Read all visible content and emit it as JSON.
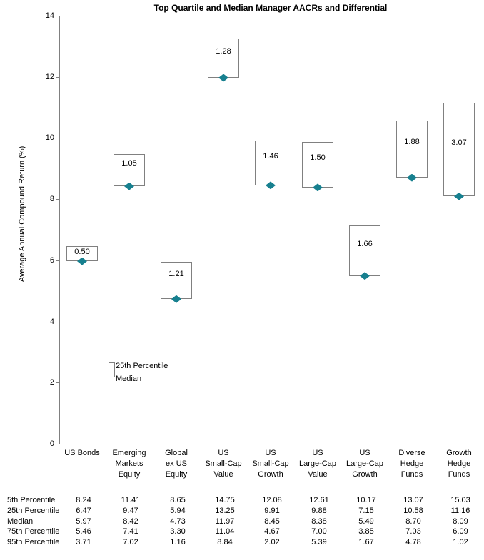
{
  "chart_data": {
    "type": "bar",
    "subtype": "floating_range_bars_with_median_marker",
    "title": "Top Quartile and Median Manager AACRs and Differential",
    "ylabel": "Average Annual Compound Return (%)",
    "xlabel": "",
    "ylim": [
      0,
      14
    ],
    "yticks": [
      0,
      2,
      4,
      6,
      8,
      10,
      12,
      14
    ],
    "grid": false,
    "legend_position": "inside-plot-left",
    "legend": {
      "bar_label": "25th Percentile",
      "marker_label": "Median"
    },
    "categories": [
      [
        "US Bonds"
      ],
      [
        "Emerging",
        "Markets",
        "Equity"
      ],
      [
        "Global",
        "ex US",
        "Equity"
      ],
      [
        "US",
        "Small-Cap",
        "Value"
      ],
      [
        "US",
        "Small-Cap",
        "Growth"
      ],
      [
        "US",
        "Large-Cap",
        "Value"
      ],
      [
        "US",
        "Large-Cap",
        "Growth"
      ],
      [
        "Diverse",
        "Hedge",
        "Funds"
      ],
      [
        "Growth",
        "Hedge",
        "Funds"
      ]
    ],
    "bar_top_series": "25th Percentile",
    "bar_bottom_series": "Median",
    "differential_labels": [
      "0.50",
      "1.05",
      "1.21",
      "1.28",
      "1.46",
      "1.50",
      "1.66",
      "1.88",
      "3.07"
    ],
    "series": [
      {
        "name": "5th Percentile",
        "values": [
          8.24,
          11.41,
          8.65,
          14.75,
          12.08,
          12.61,
          10.17,
          13.07,
          15.03
        ]
      },
      {
        "name": "25th Percentile",
        "values": [
          6.47,
          9.47,
          5.94,
          13.25,
          9.91,
          9.88,
          7.15,
          10.58,
          11.16
        ]
      },
      {
        "name": "Median",
        "values": [
          5.97,
          8.42,
          4.73,
          11.97,
          8.45,
          8.38,
          5.49,
          8.7,
          8.09
        ]
      },
      {
        "name": "75th Percentile",
        "values": [
          5.46,
          7.41,
          3.3,
          11.04,
          4.67,
          7.0,
          3.85,
          7.03,
          6.09
        ]
      },
      {
        "name": "95th Percentile",
        "values": [
          3.71,
          7.02,
          1.16,
          8.84,
          2.02,
          5.39,
          1.67,
          4.78,
          1.02
        ]
      }
    ]
  },
  "colors": {
    "marker": "#17808F",
    "bar_border": "#808080",
    "axis": "#808080",
    "text": "#000000"
  }
}
